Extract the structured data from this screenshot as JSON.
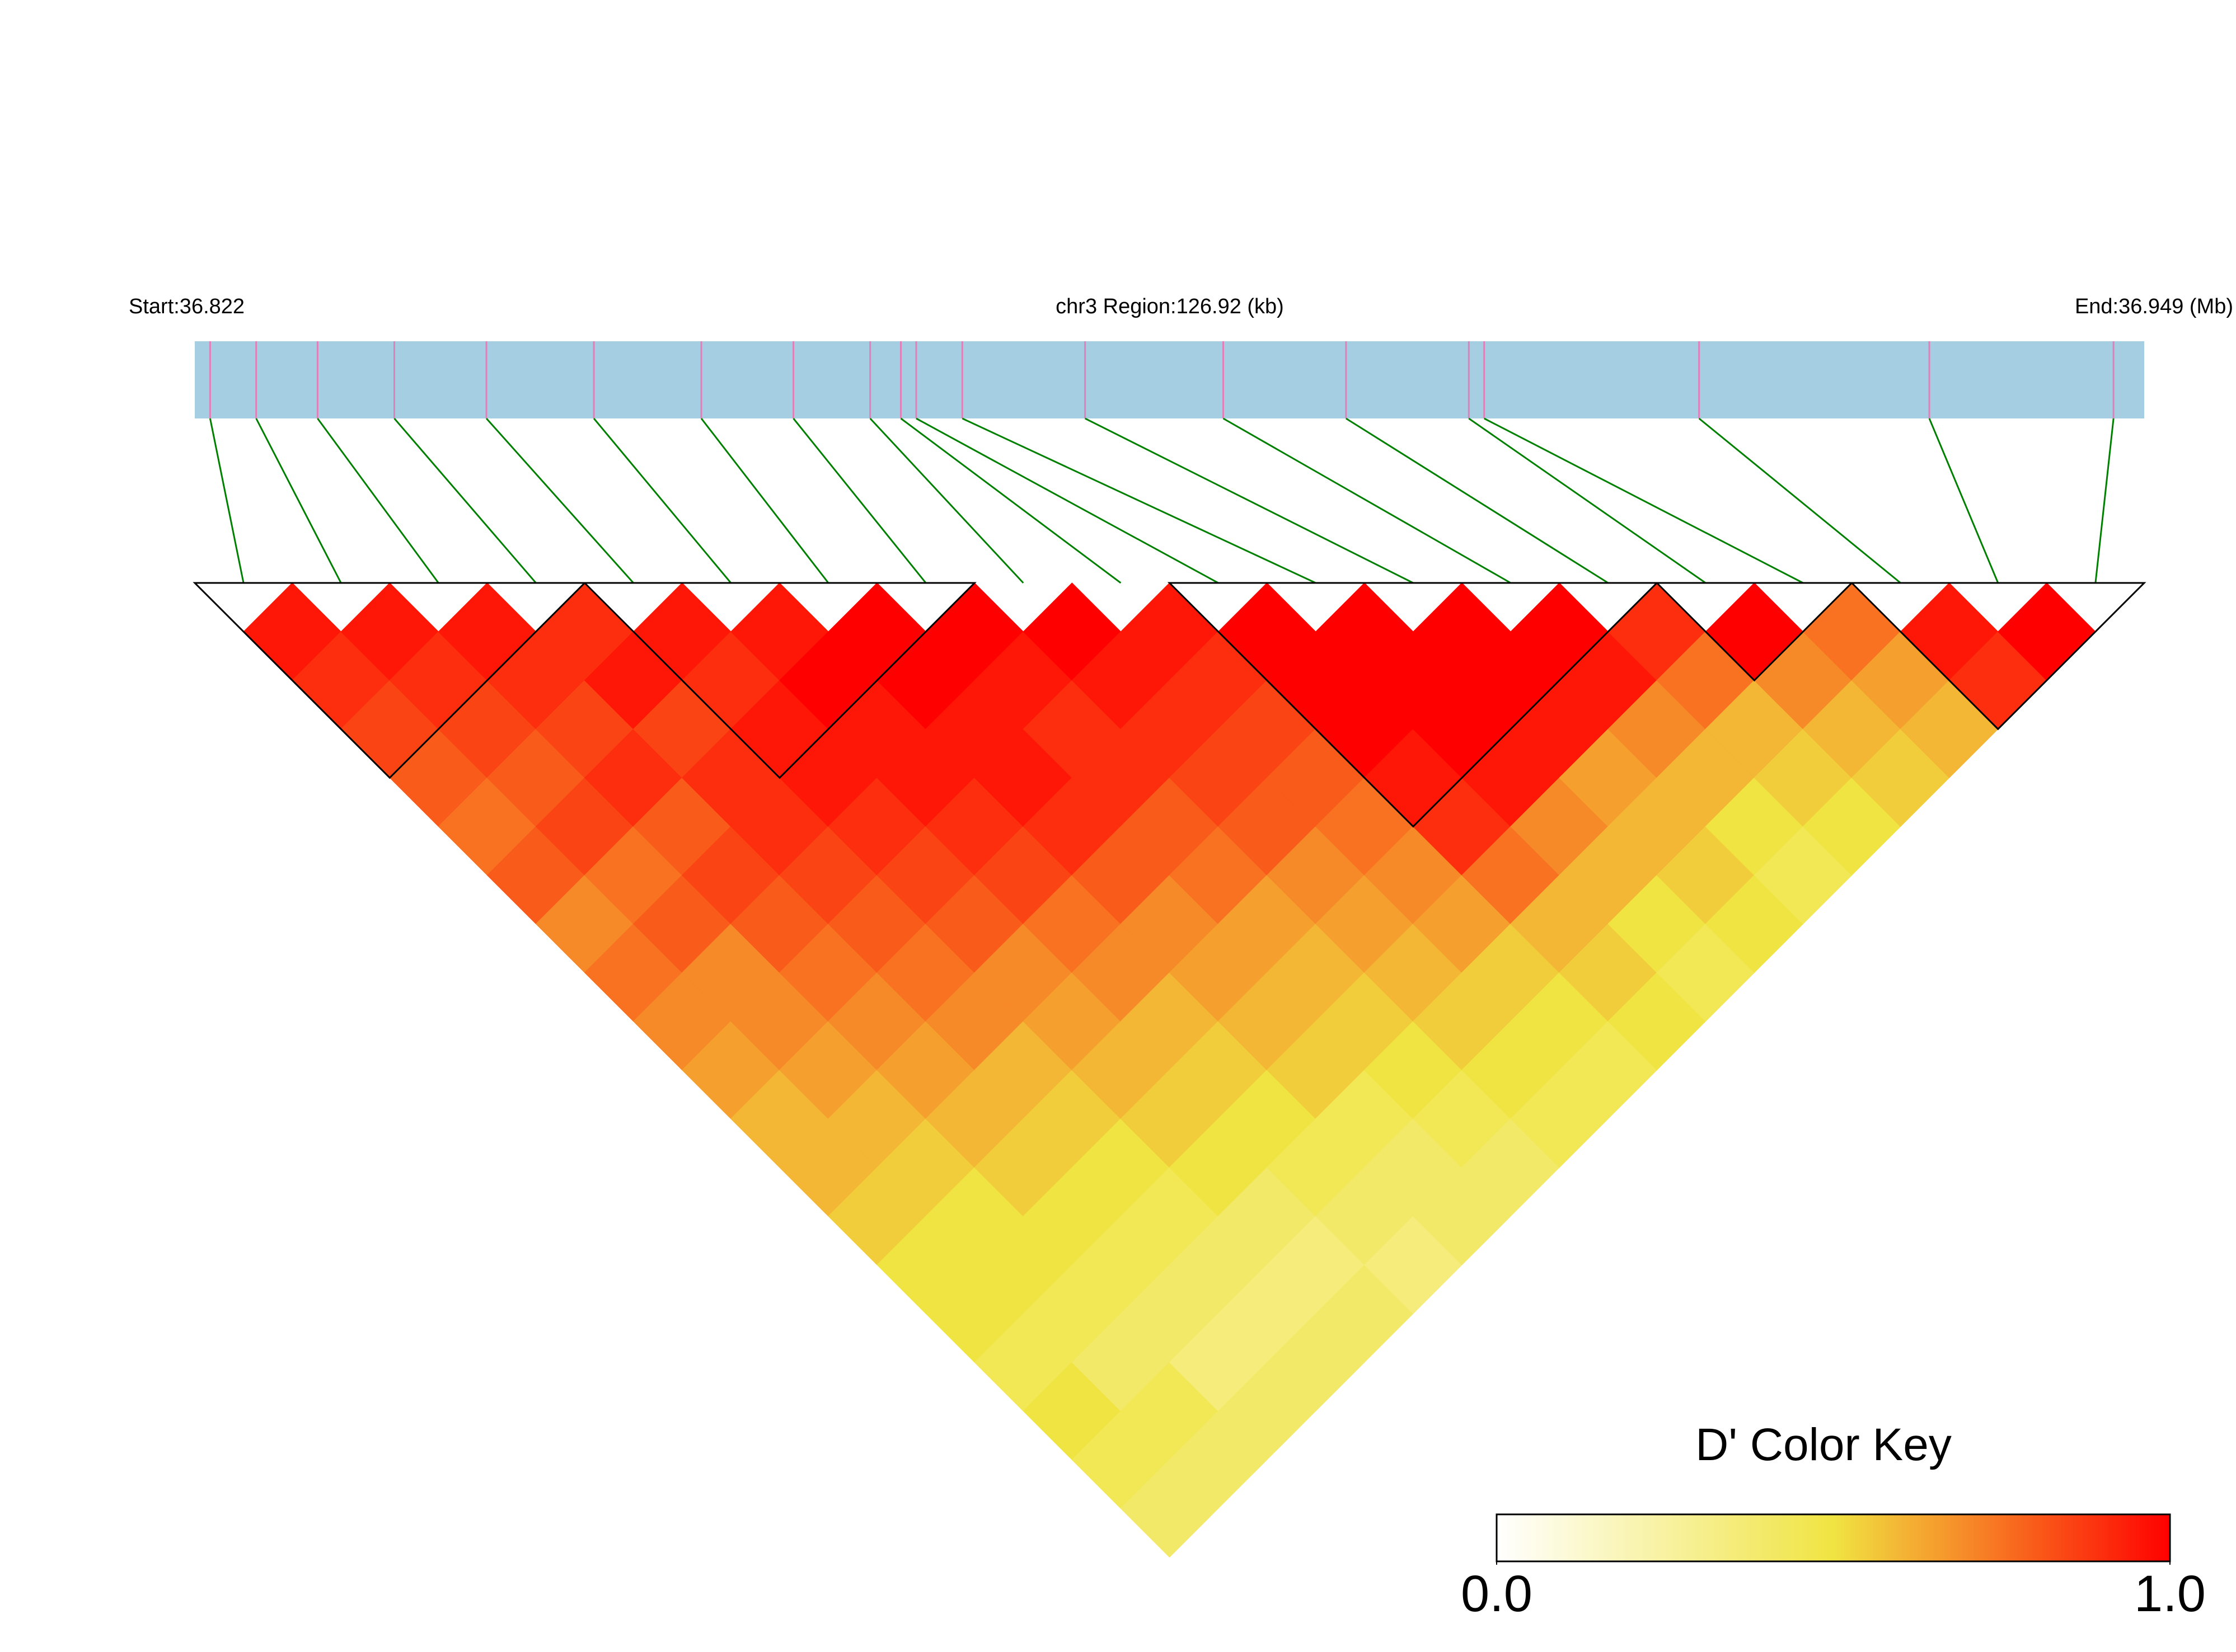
{
  "chart_data": {
    "type": "ld-heatmap",
    "title": "chr3 Region:126.92 (kb)",
    "start_label": "Start:36.822",
    "end_label": "End:36.949 (Mb)",
    "xlim": [
      36.822,
      36.949
    ],
    "positions": [
      36.823,
      36.826,
      36.83,
      36.835,
      36.841,
      36.848,
      36.855,
      36.861,
      36.866,
      36.868,
      36.869,
      36.872,
      36.88,
      36.889,
      36.897,
      36.905,
      36.906,
      36.92,
      36.935,
      36.947
    ],
    "ld": [
      [
        0.95,
        0.9,
        0.85,
        0.8,
        0.75,
        0.8,
        0.7,
        0.75,
        0.7,
        0.65,
        0.6,
        0.6,
        0.55,
        0.5,
        0.5,
        0.45,
        0.5,
        0.45,
        0.4
      ],
      [
        0.95,
        0.9,
        0.85,
        0.8,
        0.85,
        0.75,
        0.8,
        0.7,
        0.7,
        0.65,
        0.6,
        0.55,
        0.5,
        0.5,
        0.45,
        0.4,
        0.45,
        0.4
      ],
      [
        0.95,
        0.9,
        0.85,
        0.9,
        0.8,
        0.85,
        0.8,
        0.75,
        0.7,
        0.65,
        0.6,
        0.55,
        0.5,
        0.45,
        0.4,
        0.35,
        0.4
      ],
      [
        0.9,
        0.95,
        0.85,
        0.9,
        0.9,
        0.85,
        0.8,
        0.75,
        0.7,
        0.6,
        0.55,
        0.5,
        0.45,
        0.4,
        0.35,
        0.4
      ],
      [
        0.95,
        0.9,
        0.95,
        0.95,
        0.9,
        0.85,
        0.8,
        0.7,
        0.65,
        0.6,
        0.55,
        0.5,
        0.4,
        0.35,
        0.4
      ],
      [
        0.95,
        1,
        0.95,
        0.95,
        0.9,
        0.85,
        0.75,
        0.7,
        0.6,
        0.55,
        0.5,
        0.45,
        0.4,
        0.35
      ],
      [
        1,
        1,
        0.95,
        0.95,
        0.9,
        0.8,
        0.7,
        0.65,
        0.6,
        0.55,
        0.45,
        0.4,
        0.4
      ],
      [
        1,
        0.95,
        0.9,
        0.9,
        0.8,
        0.75,
        0.65,
        0.6,
        0.55,
        0.5,
        0.45,
        0.4
      ],
      [
        1,
        0.95,
        0.9,
        0.85,
        0.8,
        0.7,
        0.65,
        0.6,
        0.55,
        0.5,
        0.45
      ],
      [
        0.95,
        0.9,
        0.85,
        0.8,
        0.75,
        0.7,
        0.65,
        0.55,
        0.5,
        0.45
      ],
      [
        1,
        1,
        1,
        0.95,
        0.9,
        0.75,
        0.6,
        0.55,
        0.5
      ],
      [
        1,
        1,
        1,
        0.95,
        0.7,
        0.6,
        0.5,
        0.45
      ],
      [
        1,
        1,
        0.95,
        0.65,
        0.6,
        0.55,
        0.5
      ],
      [
        1,
        0.95,
        0.7,
        0.6,
        0.5,
        0.45
      ],
      [
        0.9,
        0.75,
        0.6,
        0.55,
        0.5
      ],
      [
        1,
        0.7,
        0.6,
        0.55
      ],
      [
        0.75,
        0.65,
        0.6
      ],
      [
        0.95,
        0.9
      ],
      [
        1
      ]
    ],
    "blocks": [
      [
        0,
        3
      ],
      [
        4,
        7
      ],
      [
        10,
        14
      ],
      [
        15,
        16
      ],
      [
        17,
        19
      ]
    ],
    "bar_color": "#a6cee3",
    "snp_color": "#e07fb8",
    "link_color": "#008000",
    "colors": [
      "#ffffff",
      "#f0e442",
      "#ff0000"
    ],
    "legend_title": "D' Color Key",
    "legend_lim": [
      0,
      1
    ],
    "legend_ticks": [
      {
        "value": 0,
        "label": "0.0"
      },
      {
        "value": 1,
        "label": "1.0"
      }
    ]
  }
}
